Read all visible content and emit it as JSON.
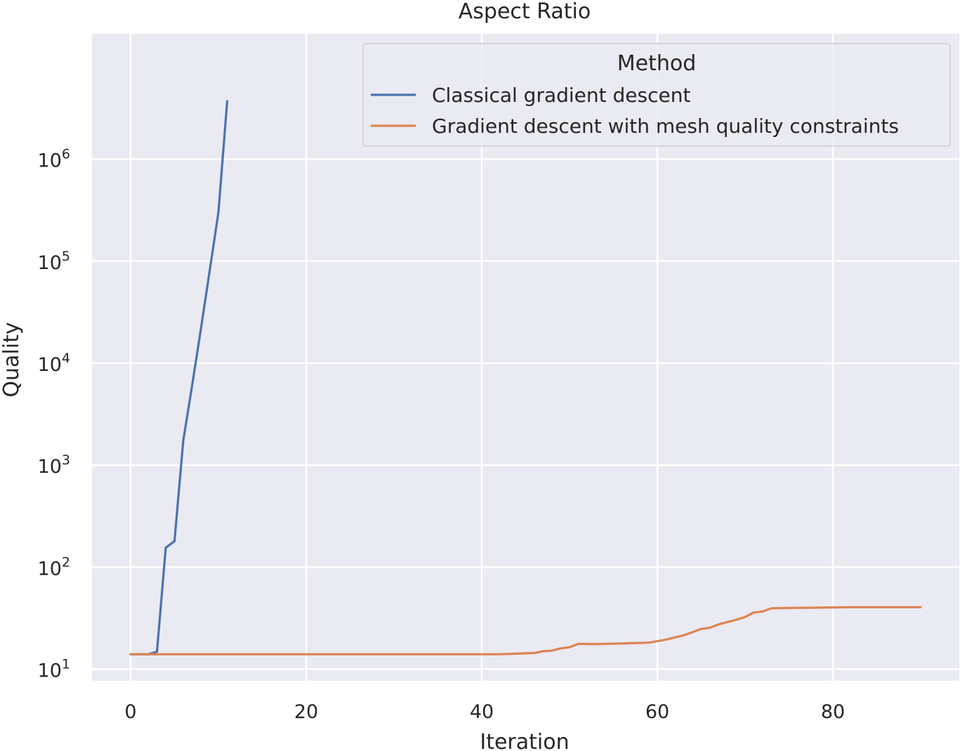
{
  "chart_data": {
    "type": "line",
    "title": "Aspect Ratio",
    "xlabel": "Iteration",
    "ylabel": "Quality",
    "y_scale": "log",
    "grid": true,
    "background": "#eaeaf2",
    "xlim": [
      -4.4,
      94.4
    ],
    "ylim": [
      7.7,
      17000000
    ],
    "x_ticks": [
      0,
      20,
      40,
      60,
      80
    ],
    "y_ticks": [
      {
        "value": 10,
        "base": "10",
        "exp": "1"
      },
      {
        "value": 100,
        "base": "10",
        "exp": "2"
      },
      {
        "value": 1000,
        "base": "10",
        "exp": "3"
      },
      {
        "value": 10000,
        "base": "10",
        "exp": "4"
      },
      {
        "value": 100000,
        "base": "10",
        "exp": "5"
      },
      {
        "value": 1000000,
        "base": "10",
        "exp": "6"
      }
    ],
    "legend": {
      "title": "Method",
      "position": "top-right"
    },
    "series": [
      {
        "name": "Classical gradient descent",
        "color": "#4c72b0",
        "x": [
          0,
          1,
          2,
          3,
          4,
          5,
          6,
          7,
          8,
          9,
          10,
          11
        ],
        "y": [
          14,
          14,
          14,
          14.8,
          155,
          180,
          1750,
          6000,
          21500,
          80000,
          300000,
          3700000
        ]
      },
      {
        "name": "Gradient descent with mesh quality constraints",
        "color": "#dd8452",
        "x": [
          0,
          5,
          10,
          15,
          20,
          25,
          30,
          35,
          40,
          42,
          44,
          46,
          47,
          48,
          49,
          50,
          51,
          53,
          55,
          57,
          59,
          60,
          61,
          62,
          63,
          64,
          65,
          66,
          67,
          68,
          69,
          70,
          71,
          72,
          73,
          75,
          77,
          80,
          82,
          85,
          88,
          90
        ],
        "y": [
          14,
          14,
          14,
          14,
          14,
          14,
          14,
          14,
          14,
          14,
          14.2,
          14.4,
          15,
          15.2,
          16,
          16.4,
          17.7,
          17.6,
          17.8,
          18,
          18.2,
          18.8,
          19.5,
          20.5,
          21.5,
          23,
          24.8,
          25.5,
          27.5,
          29,
          30.5,
          32.5,
          36,
          36.8,
          39.5,
          39.8,
          40,
          40.3,
          40.5,
          40.5,
          40.5,
          40.5
        ]
      }
    ]
  }
}
